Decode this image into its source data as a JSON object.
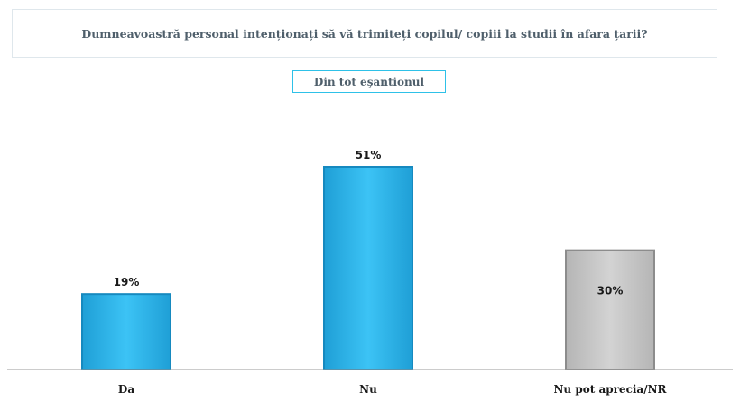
{
  "header": {
    "title": "Dumneavoastră personal intenționați să vă trimiteți copilul/ copiii la studii în afara țarii?",
    "subtitle": "Din tot eşantionul"
  },
  "chart_data": {
    "type": "bar",
    "categories": [
      "Da",
      "Nu",
      "Nu pot aprecia/NR"
    ],
    "values": [
      19,
      51,
      30
    ],
    "value_labels": [
      "19%",
      "51%",
      "30%"
    ],
    "ylim": [
      0,
      60
    ],
    "grid": false,
    "colors": [
      "#2ab4ec",
      "#2ab4ec",
      "#c8c8c8"
    ],
    "label_inside": [
      false,
      false,
      true
    ]
  }
}
